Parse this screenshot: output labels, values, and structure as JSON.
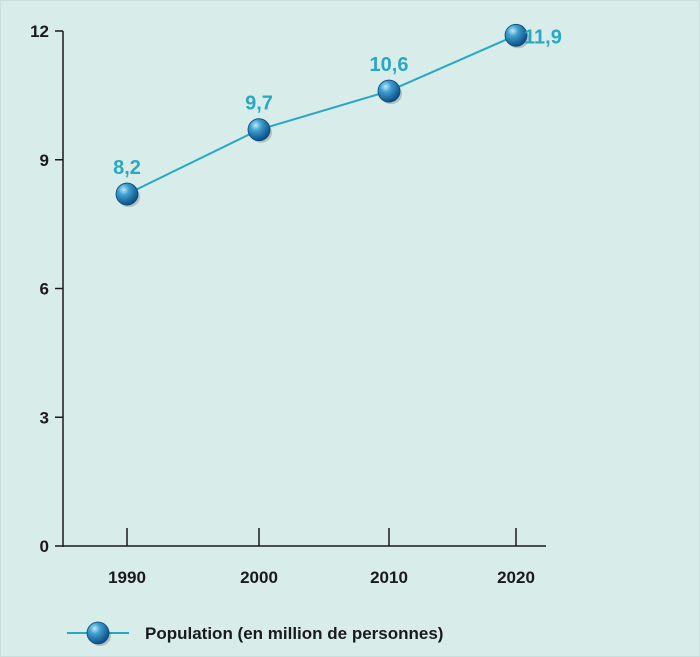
{
  "chart_data": {
    "type": "line",
    "title": "",
    "xlabel": "",
    "ylabel": "",
    "x": [
      "1990",
      "2000",
      "2010",
      "2020"
    ],
    "series": [
      {
        "name": "Population (en million de personnes)",
        "values": [
          8.2,
          9.7,
          10.6,
          11.9
        ],
        "value_labels": [
          "8,2",
          "9,7",
          "10,6",
          "11,9"
        ]
      }
    ],
    "ylim": [
      0,
      12
    ],
    "yticks": [
      0,
      3,
      6,
      9,
      12
    ],
    "grid": false,
    "legend_position": "bottom-left",
    "colors": {
      "background": "#d8ecea",
      "line": "#29a8c4",
      "marker": "#1f6fa8",
      "data_label": "#29a8c4",
      "axis": "#1a1a1a"
    }
  }
}
